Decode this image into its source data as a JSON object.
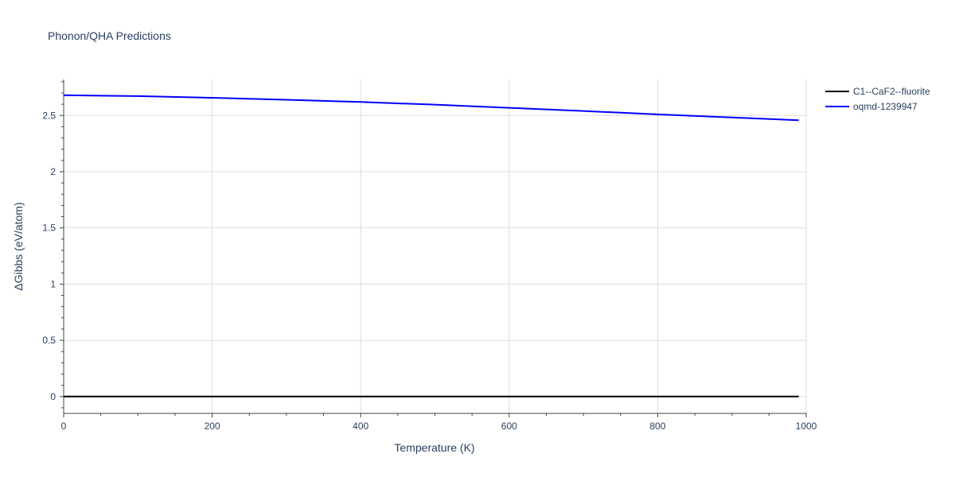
{
  "chart_data": {
    "type": "line",
    "title": "Phonon/QHA Predictions",
    "xlabel": "Temperature (K)",
    "ylabel": "ΔGibbs (eV/atom)",
    "xlim": [
      0,
      1000
    ],
    "ylim": [
      -0.15,
      2.82
    ],
    "x_ticks": [
      0,
      200,
      400,
      600,
      800,
      1000
    ],
    "y_ticks": [
      0,
      0.5,
      1,
      1.5,
      2,
      2.5
    ],
    "x_tick_labels": [
      "0",
      "200",
      "400",
      "600",
      "800",
      "1000"
    ],
    "y_tick_labels": [
      "0",
      "0.5",
      "1",
      "1.5",
      "2",
      "2.5"
    ],
    "grid": true,
    "legend_position": "top-right, outside plot",
    "series": [
      {
        "name": "C1--CaF2--fluorite",
        "color": "#000000",
        "x": [
          0,
          100,
          200,
          300,
          400,
          500,
          600,
          700,
          800,
          900,
          990
        ],
        "y": [
          0,
          0,
          0,
          0,
          0,
          0,
          0,
          0,
          0,
          0,
          0
        ]
      },
      {
        "name": "oqmd-1239947",
        "color": "#0000ff",
        "x": [
          0,
          100,
          200,
          300,
          400,
          500,
          600,
          700,
          800,
          900,
          990
        ],
        "y": [
          2.68,
          2.672,
          2.657,
          2.64,
          2.62,
          2.596,
          2.568,
          2.54,
          2.51,
          2.482,
          2.458
        ]
      }
    ]
  }
}
